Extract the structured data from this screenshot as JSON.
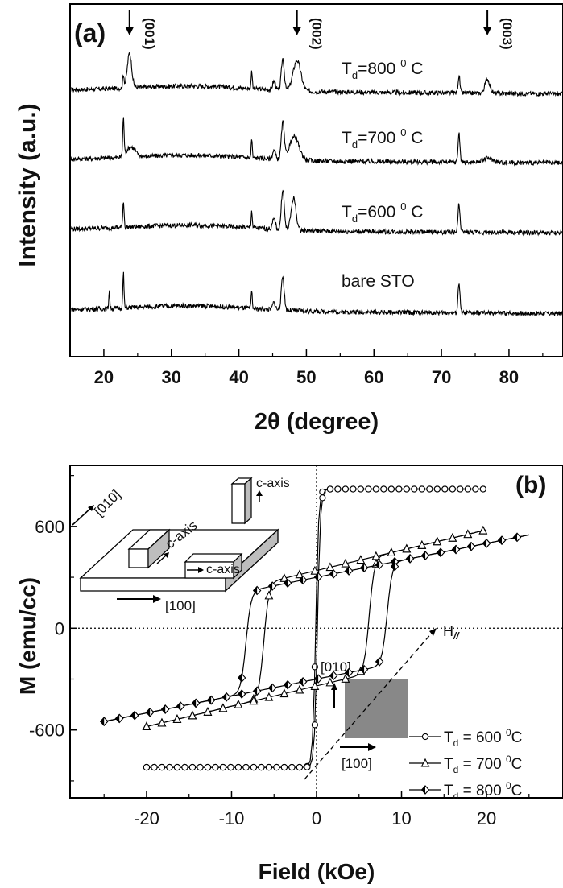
{
  "chart_data": [
    {
      "panel": "(a)",
      "type": "line",
      "xlabel": "2θ (degree)",
      "ylabel": "Intensity (a.u.)",
      "xlim": [
        15,
        88
      ],
      "xticks": [
        20,
        30,
        40,
        50,
        60,
        70,
        80
      ],
      "grid": false,
      "series": [
        {
          "name": "T_d=800 °C",
          "label_main": "T",
          "label_sub": "d",
          "label_rest": "=800 ",
          "label_sup": "0",
          "label_unit": "C",
          "offset": 3,
          "peaks": [
            {
              "x": 22.9,
              "h": 0.9,
              "w": 0.15
            },
            {
              "x": 23.8,
              "h": 2.4,
              "w": 0.45
            },
            {
              "x": 41.9,
              "h": 1.3,
              "w": 0.12
            },
            {
              "x": 45.2,
              "h": 0.6,
              "w": 0.3
            },
            {
              "x": 46.5,
              "h": 2.2,
              "w": 0.3
            },
            {
              "x": 48.6,
              "h": 2.1,
              "w": 0.8
            },
            {
              "x": 72.6,
              "h": 1.2,
              "w": 0.2
            },
            {
              "x": 76.8,
              "h": 1.0,
              "w": 0.5
            }
          ]
        },
        {
          "name": "T_d=700 °C",
          "label_main": "T",
          "label_sub": "d",
          "label_rest": "=700 ",
          "label_sup": "0",
          "label_unit": "C",
          "offset": 2,
          "peaks": [
            {
              "x": 22.9,
              "h": 2.6,
              "w": 0.14
            },
            {
              "x": 24.0,
              "h": 0.7,
              "w": 0.9
            },
            {
              "x": 41.9,
              "h": 1.3,
              "w": 0.12
            },
            {
              "x": 45.2,
              "h": 0.6,
              "w": 0.3
            },
            {
              "x": 46.5,
              "h": 2.5,
              "w": 0.3
            },
            {
              "x": 48.2,
              "h": 1.6,
              "w": 1.0
            },
            {
              "x": 72.6,
              "h": 2.0,
              "w": 0.2
            },
            {
              "x": 76.9,
              "h": 0.3,
              "w": 1.0
            }
          ]
        },
        {
          "name": "T_d=600 °C",
          "label_main": "T",
          "label_sub": "d",
          "label_rest": "=600 ",
          "label_sup": "0",
          "label_unit": "C",
          "offset": 1,
          "peaks": [
            {
              "x": 22.9,
              "h": 1.8,
              "w": 0.14
            },
            {
              "x": 41.9,
              "h": 1.2,
              "w": 0.12
            },
            {
              "x": 45.2,
              "h": 0.7,
              "w": 0.3
            },
            {
              "x": 46.5,
              "h": 2.8,
              "w": 0.3
            },
            {
              "x": 48.1,
              "h": 2.2,
              "w": 0.5
            },
            {
              "x": 72.6,
              "h": 2.0,
              "w": 0.2
            }
          ]
        },
        {
          "name": "bare STO",
          "label_main": "bare STO",
          "offset": 0,
          "peaks": [
            {
              "x": 20.8,
              "h": 1.3,
              "w": 0.1
            },
            {
              "x": 22.9,
              "h": 2.4,
              "w": 0.12
            },
            {
              "x": 41.9,
              "h": 1.2,
              "w": 0.12
            },
            {
              "x": 45.2,
              "h": 0.5,
              "w": 0.3
            },
            {
              "x": 46.5,
              "h": 2.3,
              "w": 0.3
            },
            {
              "x": 72.6,
              "h": 2.1,
              "w": 0.2
            }
          ]
        }
      ],
      "annotations": [
        {
          "text": "(001)",
          "x": 23.8
        },
        {
          "text": "(002)",
          "x": 48.6
        },
        {
          "text": "(003)",
          "x": 76.8
        }
      ]
    },
    {
      "panel": "(b)",
      "type": "scatter",
      "xlabel": "Field (kOe)",
      "ylabel": "M (emu/cc)",
      "xlim": [
        -29,
        29
      ],
      "ylim": [
        -1000,
        960
      ],
      "xticks": [
        -20,
        -10,
        0,
        10,
        20
      ],
      "yticks": [
        -600,
        0,
        600
      ],
      "grid": false,
      "zero_lines": true,
      "series": [
        {
          "name": "T_d = 600 °C",
          "marker": "circle",
          "Ms": 820,
          "Hc": 0.1,
          "w": 0.35,
          "slope": 0,
          "xmax": 20
        },
        {
          "name": "T_d = 700 °C",
          "marker": "triangle",
          "Ms": 340,
          "Hc": 6.2,
          "w": 0.6,
          "slope": 12,
          "xmax": 20
        },
        {
          "name": "T_d = 800 °C",
          "marker": "diamond",
          "Ms": 300,
          "Hc": 8.3,
          "w": 0.6,
          "slope": 10,
          "xmax": 25
        }
      ],
      "legend": {
        "position": "bottom-right",
        "entries": [
          {
            "marker": "circle",
            "main": "T",
            "sub": "d",
            "rest": " = 600 ",
            "sup": "0",
            "unit": "C"
          },
          {
            "marker": "triangle",
            "main": "T",
            "sub": "d",
            "rest": " = 700 ",
            "sup": "0",
            "unit": "C"
          },
          {
            "marker": "diamond",
            "main": "T",
            "sub": "d",
            "rest": " = 800 ",
            "sup": "0",
            "unit": "C"
          }
        ]
      },
      "inset": {
        "direction_010": "[010]",
        "direction_100": "[100]",
        "c_axis": "c-axis",
        "field_main": "H",
        "field_sub": "//"
      }
    }
  ]
}
